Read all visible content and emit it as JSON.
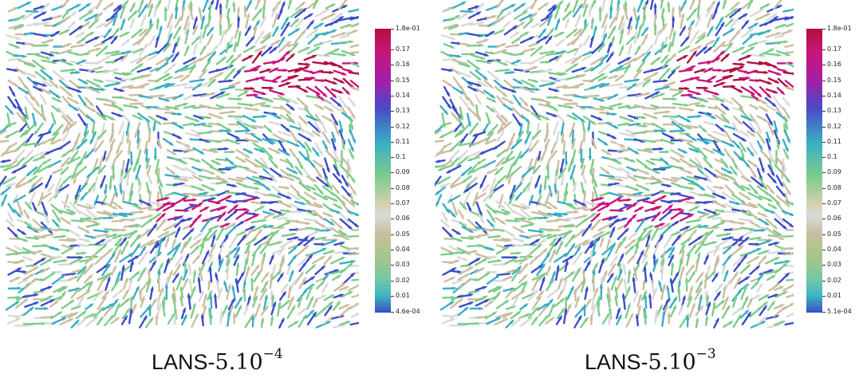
{
  "panels": [
    {
      "caption_prefix": "LANS-",
      "caption_math": "5.10",
      "caption_exponent": "−4",
      "colorbar": {
        "max_label": "1.8e-01",
        "min_label": "4.6e-04",
        "ticks": [
          "0.17",
          "0.16",
          "0.15",
          "0.14",
          "0.13",
          "0.12",
          "0.11",
          "0.1",
          "0.09",
          "0.08",
          "0.07",
          "0.06",
          "0.05",
          "0.04",
          "0.03",
          "0.02",
          "0.01"
        ]
      }
    },
    {
      "caption_prefix": "LANS-",
      "caption_math": "5.10",
      "caption_exponent": "−3",
      "colorbar": {
        "max_label": "1.8e-01",
        "min_label": "5.1e-04",
        "ticks": [
          "0.17",
          "0.16",
          "0.15",
          "0.14",
          "0.13",
          "0.12",
          "0.11",
          "0.1",
          "0.09",
          "0.08",
          "0.07",
          "0.06",
          "0.05",
          "0.04",
          "0.03",
          "0.02",
          "0.01"
        ]
      }
    }
  ],
  "colors": {
    "max": "#b0103f",
    "magenta": "#c8157b",
    "blue": "#3c4cc9",
    "teal": "#3aaec3",
    "green": "#7dcc8a",
    "beige": "#c9bea0",
    "gray": "#d9d9d9"
  }
}
